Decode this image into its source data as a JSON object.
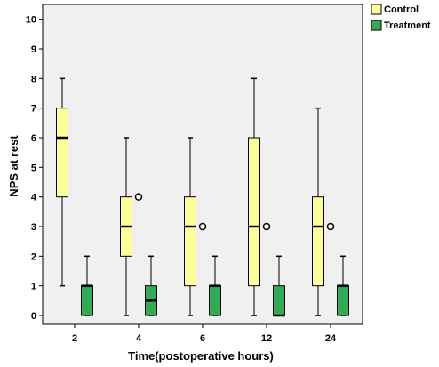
{
  "chart_data": {
    "type": "boxplot",
    "xlabel": "Time(postoperative hours)",
    "ylabel": "NPS at rest",
    "categories": [
      "2",
      "4",
      "6",
      "12",
      "24"
    ],
    "ylim": [
      -0.3,
      10.5
    ],
    "yticks": [
      0,
      1,
      2,
      3,
      4,
      5,
      6,
      7,
      8,
      9,
      10
    ],
    "grid": false,
    "legend_position": "top-right",
    "background": "#f0f0f0",
    "series": [
      {
        "name": "Control",
        "color": "#ffff99",
        "boxes": [
          {
            "min": 1,
            "q1": 4,
            "median": 6,
            "q3": 7,
            "max": 8,
            "outliers": []
          },
          {
            "min": 0,
            "q1": 2,
            "median": 3,
            "q3": 4,
            "max": 6,
            "outliers": [
              4
            ]
          },
          {
            "min": 0,
            "q1": 1,
            "median": 3,
            "q3": 4,
            "max": 6,
            "outliers": [
              3
            ]
          },
          {
            "min": 0,
            "q1": 1,
            "median": 3,
            "q3": 6,
            "max": 8,
            "outliers": [
              3
            ]
          },
          {
            "min": 0,
            "q1": 1,
            "median": 3,
            "q3": 4,
            "max": 7,
            "outliers": [
              3
            ]
          }
        ]
      },
      {
        "name": "Treatment",
        "color": "#33aa55",
        "boxes": [
          {
            "min": 0,
            "q1": 0,
            "median": 1,
            "q3": 1,
            "max": 2,
            "outliers": []
          },
          {
            "min": 0,
            "q1": 0,
            "median": 0.5,
            "q3": 1,
            "max": 2,
            "outliers": []
          },
          {
            "min": 0,
            "q1": 0,
            "median": 1,
            "q3": 1,
            "max": 2,
            "outliers": []
          },
          {
            "min": 0,
            "q1": 0,
            "median": 0,
            "q3": 1,
            "max": 2,
            "outliers": []
          },
          {
            "min": 0,
            "q1": 0,
            "median": 1,
            "q3": 1,
            "max": 2,
            "outliers": []
          }
        ]
      }
    ]
  }
}
